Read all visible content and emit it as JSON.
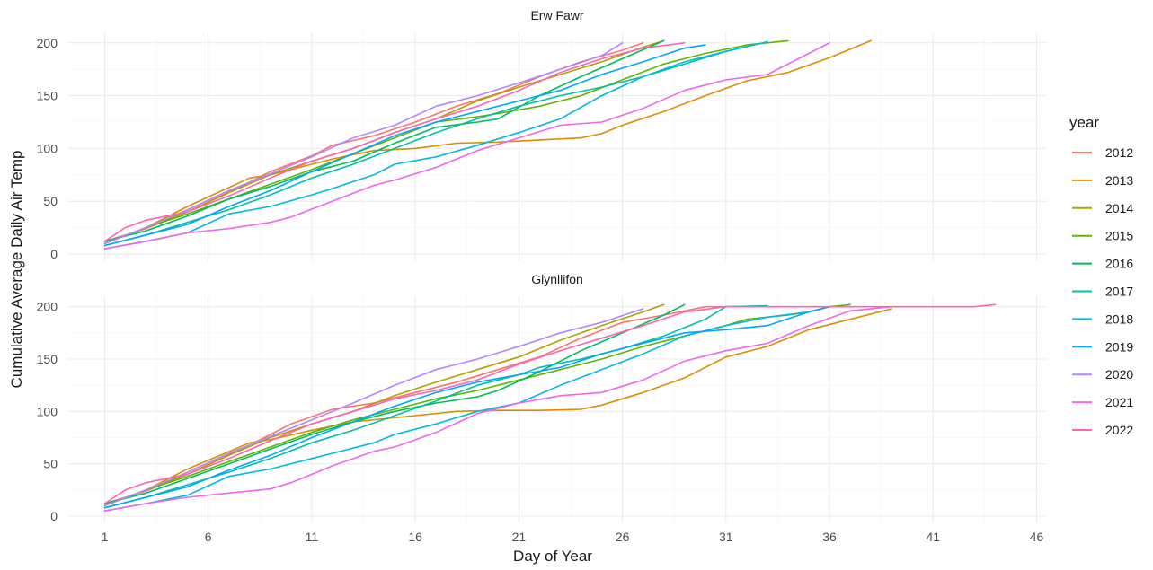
{
  "chart_data": {
    "type": "line",
    "xlabel": "Day of Year",
    "ylabel": "Cumulative Average Daily Air Temp",
    "x_ticks": [
      1,
      6,
      11,
      16,
      21,
      26,
      31,
      36,
      41,
      46
    ],
    "y_ticks": [
      0,
      50,
      100,
      150,
      200
    ],
    "xlim": [
      -0.8,
      46.5
    ],
    "ylim": [
      -6,
      210
    ],
    "grid": true,
    "legend": {
      "title": "year",
      "position": "right",
      "entries": [
        {
          "name": "2012",
          "color": "#F8766D"
        },
        {
          "name": "2013",
          "color": "#DB8E00"
        },
        {
          "name": "2014",
          "color": "#AEA200"
        },
        {
          "name": "2015",
          "color": "#64B200"
        },
        {
          "name": "2016",
          "color": "#00BD5C"
        },
        {
          "name": "2017",
          "color": "#00C1A7"
        },
        {
          "name": "2018",
          "color": "#00BADE"
        },
        {
          "name": "2019",
          "color": "#00A6FF"
        },
        {
          "name": "2020",
          "color": "#B385FF"
        },
        {
          "name": "2021",
          "color": "#EF67EB"
        },
        {
          "name": "2022",
          "color": "#FF63B6"
        }
      ]
    },
    "panels": [
      {
        "title": "Erw Fawr",
        "series": [
          {
            "name": "2012",
            "x": [
              1,
              3,
              5,
              8,
              9,
              11,
              12,
              14,
              16,
              18,
              20,
              22,
              24,
              26,
              27
            ],
            "y": [
              12,
              24,
              40,
              68,
              78,
              93,
              103,
              112,
              125,
              140,
              152,
              168,
              182,
              193,
              200
            ]
          },
          {
            "name": "2013",
            "x": [
              1,
              3,
              5,
              8,
              9,
              10,
              12,
              14,
              16,
              18,
              20,
              22,
              24,
              25,
              26,
              28,
              30,
              32,
              34,
              36,
              38
            ],
            "y": [
              10,
              25,
              45,
              72,
              75,
              80,
              90,
              98,
              100,
              105,
              106,
              108,
              110,
              114,
              122,
              135,
              150,
              164,
              172,
              186,
              202
            ]
          },
          {
            "name": "2014",
            "x": [
              1,
              3,
              5,
              7,
              9,
              11,
              13,
              15,
              17,
              19,
              21,
              23,
              25,
              27,
              28
            ],
            "y": [
              10,
              25,
              40,
              58,
              75,
              88,
              100,
              115,
              128,
              145,
              158,
              170,
              182,
              196,
              202
            ]
          },
          {
            "name": "2015",
            "x": [
              1,
              3,
              5,
              7,
              9,
              11,
              13,
              15,
              17,
              19,
              20,
              22,
              24,
              26,
              28,
              30,
              32,
              34
            ],
            "y": [
              10,
              25,
              38,
              52,
              66,
              80,
              95,
              110,
              125,
              130,
              133,
              140,
              150,
              165,
              180,
              190,
              198,
              202
            ]
          },
          {
            "name": "2016",
            "x": [
              1,
              3,
              5,
              7,
              9,
              11,
              13,
              15,
              17,
              19,
              20,
              22,
              24,
              26,
              28
            ],
            "y": [
              12,
              22,
              36,
              52,
              64,
              78,
              88,
              105,
              120,
              125,
              128,
              150,
              168,
              185,
              202
            ]
          },
          {
            "name": "2017",
            "x": [
              1,
              3,
              5,
              7,
              9,
              11,
              13,
              15,
              17,
              19,
              21,
              23,
              25,
              27,
              29,
              31,
              33
            ],
            "y": [
              8,
              18,
              30,
              42,
              56,
              72,
              85,
              100,
              115,
              128,
              140,
              150,
              158,
              168,
              180,
              192,
              201
            ]
          },
          {
            "name": "2018",
            "x": [
              1,
              3,
              5,
              7,
              9,
              11,
              12,
              14,
              15,
              17,
              19,
              21,
              23,
              25,
              27,
              29,
              31,
              33
            ],
            "y": [
              5,
              12,
              20,
              38,
              45,
              56,
              62,
              75,
              85,
              92,
              103,
              115,
              128,
              150,
              168,
              182,
              192,
              201
            ]
          },
          {
            "name": "2019",
            "x": [
              1,
              3,
              5,
              7,
              9,
              11,
              13,
              15,
              17,
              19,
              21,
              23,
              25,
              27,
              29,
              30
            ],
            "y": [
              8,
              18,
              28,
              45,
              60,
              78,
              95,
              112,
              125,
              135,
              145,
              155,
              170,
              182,
              195,
              198
            ]
          },
          {
            "name": "2020",
            "x": [
              1,
              3,
              5,
              7,
              9,
              11,
              13,
              15,
              17,
              19,
              21,
              23,
              25,
              26
            ],
            "y": [
              10,
              25,
              42,
              60,
              76,
              92,
              110,
              122,
              140,
              150,
              162,
              175,
              188,
              200
            ]
          },
          {
            "name": "2021",
            "x": [
              1,
              3,
              5,
              7,
              9,
              10,
              12,
              14,
              15,
              17,
              19,
              21,
              23,
              25,
              27,
              29,
              31,
              33,
              35,
              36
            ],
            "y": [
              5,
              12,
              20,
              24,
              30,
              35,
              50,
              65,
              70,
              82,
              98,
              110,
              122,
              125,
              138,
              155,
              165,
              170,
              190,
              200
            ]
          },
          {
            "name": "2022",
            "x": [
              1,
              2,
              3,
              5,
              7,
              9,
              11,
              13,
              15,
              17,
              19,
              21,
              23,
              25,
              27,
              29
            ],
            "y": [
              12,
              25,
              32,
              40,
              55,
              72,
              88,
              100,
              115,
              128,
              140,
              155,
              172,
              185,
              195,
              200
            ]
          }
        ]
      },
      {
        "title": "Glynllifon",
        "series": [
          {
            "name": "2012",
            "x": [
              1,
              3,
              5,
              8,
              10,
              12,
              14,
              16,
              18,
              20,
              22,
              24,
              26,
              28,
              30,
              32,
              34
            ],
            "y": [
              12,
              24,
              40,
              68,
              88,
              102,
              108,
              118,
              128,
              140,
              152,
              170,
              185,
              192,
              200,
              200,
              200
            ]
          },
          {
            "name": "2013",
            "x": [
              1,
              3,
              5,
              8,
              9,
              11,
              13,
              16,
              18,
              20,
              22,
              24,
              25,
              27,
              29,
              31,
              33,
              35,
              37,
              39
            ],
            "y": [
              10,
              25,
              45,
              70,
              73,
              82,
              90,
              96,
              100,
              101,
              101,
              102,
              106,
              118,
              132,
              152,
              162,
              178,
              188,
              198
            ]
          },
          {
            "name": "2014",
            "x": [
              1,
              3,
              5,
              7,
              9,
              11,
              13,
              15,
              17,
              19,
              21,
              23,
              25,
              27,
              28
            ],
            "y": [
              10,
              25,
              40,
              58,
              75,
              88,
              100,
              115,
              128,
              140,
              152,
              168,
              182,
              195,
              202
            ]
          },
          {
            "name": "2015",
            "x": [
              1,
              3,
              5,
              7,
              9,
              11,
              13,
              15,
              17,
              19,
              21,
              23,
              25,
              27,
              29,
              31,
              32,
              34,
              35,
              36,
              37
            ],
            "y": [
              10,
              25,
              38,
              52,
              66,
              80,
              92,
              102,
              112,
              120,
              130,
              140,
              150,
              162,
              172,
              182,
              188,
              192,
              195,
              200,
              202
            ]
          },
          {
            "name": "2016",
            "x": [
              1,
              3,
              5,
              7,
              9,
              11,
              13,
              15,
              17,
              19,
              20,
              22,
              24,
              26,
              28,
              29
            ],
            "y": [
              12,
              22,
              36,
              50,
              64,
              78,
              90,
              100,
              108,
              114,
              120,
              138,
              158,
              175,
              192,
              202
            ]
          },
          {
            "name": "2017",
            "x": [
              1,
              3,
              5,
              7,
              9,
              11,
              13,
              15,
              17,
              19,
              21,
              22,
              24,
              26,
              28,
              30,
              31,
              33
            ],
            "y": [
              8,
              18,
              30,
              42,
              55,
              70,
              82,
              96,
              110,
              125,
              135,
              142,
              150,
              160,
              172,
              188,
              200,
              201
            ]
          },
          {
            "name": "2018",
            "x": [
              1,
              3,
              5,
              7,
              9,
              11,
              12,
              14,
              15,
              17,
              19,
              21,
              23,
              25,
              27,
              29,
              31,
              33,
              35,
              36
            ],
            "y": [
              5,
              12,
              20,
              38,
              45,
              55,
              60,
              70,
              78,
              88,
              100,
              108,
              125,
              140,
              155,
              172,
              182,
              190,
              195,
              200
            ]
          },
          {
            "name": "2019",
            "x": [
              1,
              3,
              5,
              7,
              9,
              11,
              13,
              15,
              17,
              19,
              21,
              23,
              25,
              27,
              29,
              31,
              33,
              35,
              36
            ],
            "y": [
              8,
              18,
              28,
              44,
              58,
              75,
              90,
              105,
              118,
              128,
              135,
              142,
              155,
              165,
              175,
              178,
              182,
              195,
              200
            ]
          },
          {
            "name": "2020",
            "x": [
              1,
              3,
              5,
              7,
              9,
              11,
              13,
              15,
              17,
              19,
              21,
              23,
              25,
              27
            ],
            "y": [
              10,
              25,
              42,
              60,
              76,
              92,
              108,
              125,
              140,
              150,
              162,
              175,
              185,
              198
            ]
          },
          {
            "name": "2021",
            "x": [
              1,
              3,
              5,
              7,
              9,
              10,
              12,
              14,
              15,
              17,
              19,
              21,
              23,
              25,
              27,
              29,
              31,
              33,
              35,
              37,
              39
            ],
            "y": [
              5,
              12,
              18,
              22,
              26,
              32,
              48,
              62,
              66,
              80,
              98,
              108,
              115,
              118,
              130,
              148,
              158,
              165,
              182,
              196,
              200
            ]
          },
          {
            "name": "2022",
            "x": [
              1,
              2,
              3,
              5,
              7,
              9,
              11,
              13,
              15,
              17,
              19,
              21,
              23,
              25,
              27,
              29,
              31,
              33,
              35,
              37,
              39,
              41,
              43,
              44
            ],
            "y": [
              12,
              25,
              32,
              40,
              55,
              72,
              88,
              100,
              112,
              120,
              130,
              145,
              158,
              170,
              182,
              195,
              200,
              200,
              200,
              200,
              200,
              200,
              200,
              202
            ]
          }
        ]
      }
    ]
  }
}
